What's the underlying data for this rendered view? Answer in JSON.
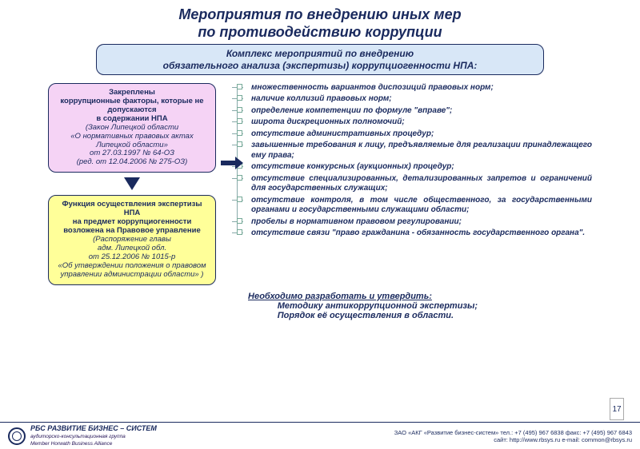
{
  "title_line1": "Мероприятия по внедрению иных  мер",
  "title_line2": "по противодействию коррупции",
  "subtitle_line1": "Комплекс мероприятий по внедрению",
  "subtitle_line2": "обязательного анализа (экспертизы) коррупциогенности НПА:",
  "box1": {
    "l1": "Закреплены",
    "l2": "коррупционные  факторы, которые не допускаются",
    "l3": "в содержании НПА",
    "l4": "(Закон Липецкой области",
    "l5": "«О нормативных правовых актах Липецкой области»",
    "l6": "от 27.03.1997  № 64-ОЗ",
    "l7": "(ред. от 12.04.2006 № 275-ОЗ)"
  },
  "box2": {
    "l1": "Функция осуществления экспертизы НПА",
    "l2": "на предмет коррупциогенности возложена на Правовое управление",
    "l3": "(Распоряжение главы",
    "l4": "адм. Липецкой обл.",
    "l5": "от 25.12.2006 № 1015-р",
    "l6": "«Об утверждении положения о правовом управлении администрации области» )"
  },
  "items": [
    "множественность вариантов диспозиций правовых норм;",
    "наличие коллизий правовых норм;",
    "определение компетенции по формуле \"вправе\";",
    "широта дискреционных полномочий;",
    "отсутствие административных процедур;",
    "завышенные требования к лицу, предъявляемые для реализации принадлежащего ему права;",
    "отсутствие конкурсных (аукционных) процедур;",
    "отсутствие специализированных, детализированных запретов и ограничений для государственных служащих;",
    "отсутствие контроля, в том числе общественного, за государственными органами и государственными служащими области;",
    "пробелы в нормативном правовом регулировании;",
    "отсутствие связи \"право гражданина - обязанность государственного органа\"."
  ],
  "bottom": {
    "heading": "Необходимо разработать и утвердить:",
    "l1": "Методику антикоррупционной экспертизы;",
    "l2": "Порядок её осуществления в области."
  },
  "footer": {
    "brand1": "РБС",
    "brand2": "РАЗВИТИЕ  БИЗНЕС – СИСТЕМ",
    "brand3": "аудиторско-консультационная группа",
    "brand4": "Member Horwath Business Alliance",
    "contact1": "ЗАО «АКГ «Развитие бизнес-систем»   тел.: +7 (495) 967 6838   факс: +7 (495) 967 6843",
    "contact2": "сайт: http://www.rbsys.ru   e-mail: common@rbsys.ru"
  },
  "pagenum": "17"
}
